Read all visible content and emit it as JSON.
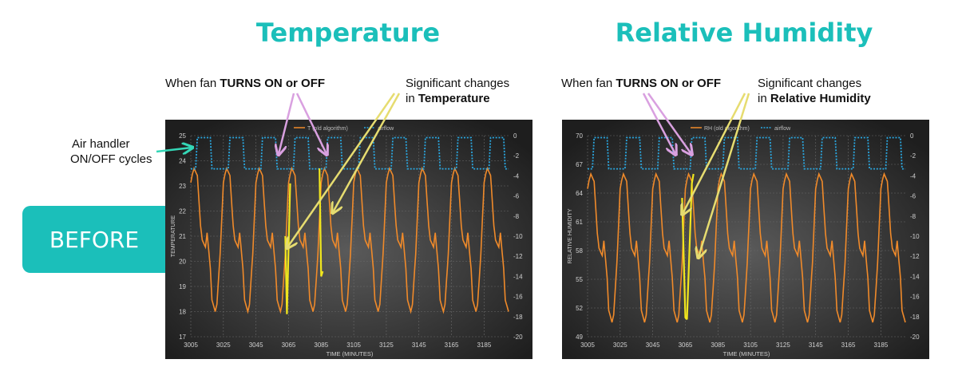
{
  "headings": {
    "left": "Temperature",
    "right": "Relative Humidity"
  },
  "annotations": {
    "fan_prefix": "When fan ",
    "fan_bold": "TURNS ON or OFF",
    "sig_line1": "Significant changes",
    "sig_in": "in ",
    "sig_temp_bold": "Temperature",
    "sig_rh_bold": "Relative Humidity",
    "air_line1": "Air handler",
    "air_line2": "ON/OFF cycles"
  },
  "badge": "BEFORE",
  "colors": {
    "accent": "#1bbfba",
    "series_main": "#f08a2a",
    "airflow": "#2aa7e0",
    "highlight": "#f0e61e",
    "arrow_fan": "#d9a0e0",
    "arrow_change": "#e6dc70",
    "arrow_air": "#34d6b6"
  },
  "chart_data": [
    {
      "type": "line",
      "title": "",
      "xlabel": "TIME (MINUTES)",
      "ylabel": "TEMPERATURE",
      "xlim": [
        3005,
        3200
      ],
      "ylim": [
        17,
        25
      ],
      "y2lim": [
        -20,
        0
      ],
      "x_ticks": [
        "3005",
        "3025",
        "3045",
        "3065",
        "3085",
        "3105",
        "3125",
        "3145",
        "3165",
        "3185"
      ],
      "y_ticks": [
        "17",
        "18",
        "19",
        "20",
        "21",
        "22",
        "23",
        "24",
        "25"
      ],
      "y2_ticks": [
        "-20",
        "-18",
        "-16",
        "-14",
        "-12",
        "-10",
        "-8",
        "-6",
        "-4",
        "-2",
        "0"
      ],
      "grid": true,
      "legend_position": "top",
      "series": [
        {
          "name": "T (old algorithm)",
          "axis": "left",
          "period": 20,
          "x0": 3006,
          "peak": 23.7,
          "trough": 18.0,
          "shoulder": 20.7,
          "dip": 19.9
        },
        {
          "name": "airflow",
          "axis": "right",
          "period": 20,
          "x0": 3008,
          "on": -0.2,
          "off": -3.3
        }
      ],
      "highlights": [
        {
          "x": [
            3063,
            3064,
            3065,
            3066
          ],
          "y": [
            21.0,
            17.9,
            20.6,
            23.1
          ]
        },
        {
          "x": [
            3084,
            3085,
            3086
          ],
          "y": [
            23.7,
            19.4,
            19.6
          ]
        }
      ]
    },
    {
      "type": "line",
      "title": "",
      "xlabel": "TIME (MINUTES)",
      "ylabel": "RELATIVE HUMIDITY",
      "xlim": [
        3005,
        3200
      ],
      "ylim": [
        49,
        70
      ],
      "y2lim": [
        -20,
        0
      ],
      "x_ticks": [
        "3005",
        "3025",
        "3045",
        "3065",
        "3085",
        "3105",
        "3125",
        "3145",
        "3165",
        "3185"
      ],
      "y_ticks": [
        "49",
        "52",
        "55",
        "58",
        "61",
        "64",
        "67",
        "70"
      ],
      "y2_ticks": [
        "-20",
        "-18",
        "-16",
        "-14",
        "-12",
        "-10",
        "-8",
        "-6",
        "-4",
        "-2",
        "0"
      ],
      "grid": true,
      "legend_position": "top",
      "series": [
        {
          "name": "RH (old algorithm)",
          "axis": "left",
          "period": 20,
          "x0": 3006,
          "peak": 66.0,
          "trough": 50.5,
          "shoulder": 59.0,
          "dip": 57.5
        },
        {
          "name": "airflow",
          "axis": "right",
          "period": 20,
          "x0": 3008,
          "on": -0.2,
          "off": -3.3
        }
      ],
      "highlights": [
        {
          "x": [
            3063,
            3065,
            3066
          ],
          "y": [
            63.5,
            51.0,
            50.8
          ]
        },
        {
          "x": [
            3066,
            3069,
            3070
          ],
          "y": [
            50.8,
            65.0,
            66.0
          ]
        }
      ]
    }
  ]
}
